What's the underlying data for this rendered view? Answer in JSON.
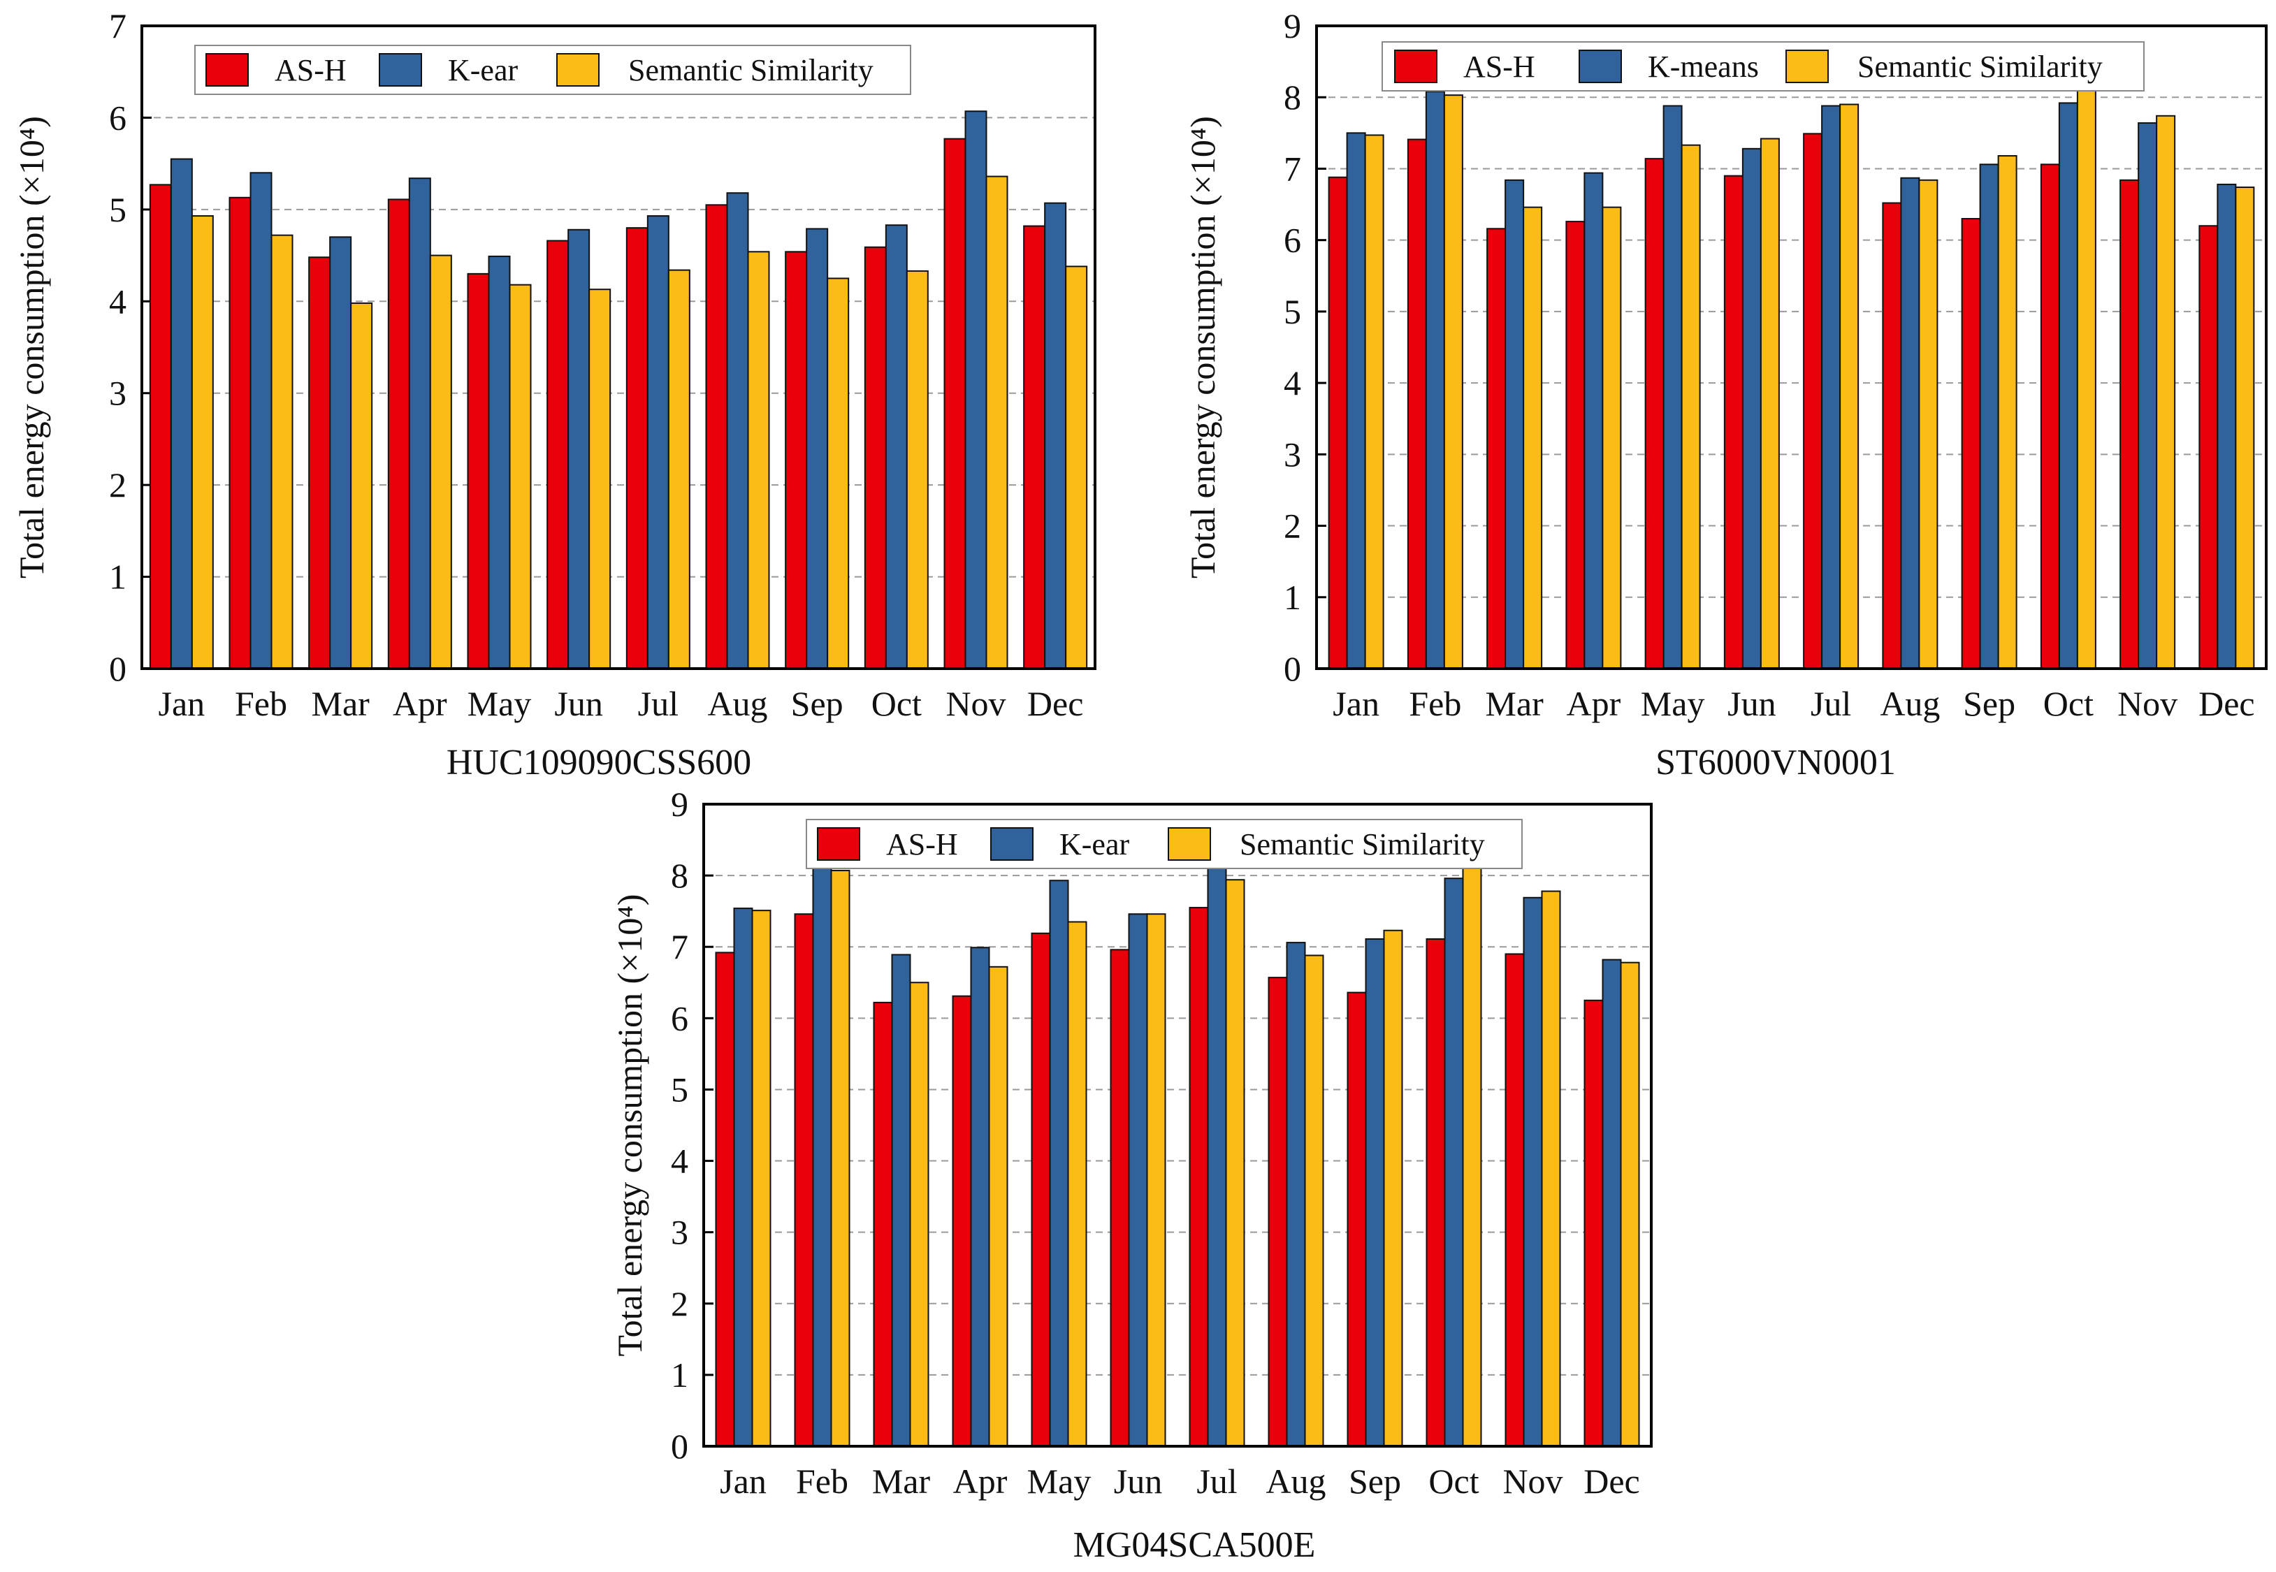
{
  "colors": {
    "as_h": "#e8000b",
    "k_series": "#30629b",
    "semantic": "#fbbc16",
    "grid": "#9a9a9a",
    "axis": "#000000"
  },
  "chart_data": [
    {
      "type": "bar",
      "caption": "HUC109090CSS600",
      "ylabel": "Total energy consumption (×10⁴)",
      "ylim": [
        0,
        7
      ],
      "yticks": [
        "0",
        "1",
        "2",
        "3",
        "4",
        "5",
        "6",
        "7"
      ],
      "categories": [
        "Jan",
        "Feb",
        "Mar",
        "Apr",
        "May",
        "Jun",
        "Jul",
        "Aug",
        "Sep",
        "Oct",
        "Nov",
        "Dec"
      ],
      "grid": "dashed-horizontal",
      "legend_position": "top-center",
      "series": [
        {
          "name": "AS-H",
          "values": [
            5.27,
            5.13,
            4.48,
            5.11,
            4.3,
            4.66,
            4.8,
            5.05,
            4.54,
            4.59,
            5.77,
            4.82
          ]
        },
        {
          "name": "K-ear",
          "values": [
            5.55,
            5.4,
            4.7,
            5.34,
            4.49,
            4.78,
            4.93,
            5.18,
            4.79,
            4.83,
            6.07,
            5.07
          ]
        },
        {
          "name": "Semantic Similarity",
          "values": [
            4.93,
            4.72,
            3.98,
            4.5,
            4.18,
            4.13,
            4.34,
            4.54,
            4.25,
            4.33,
            5.36,
            4.38
          ]
        }
      ]
    },
    {
      "type": "bar",
      "caption": "ST6000VN0001",
      "ylabel": "Total energy consumption (×10⁴)",
      "ylim": [
        0,
        9
      ],
      "yticks": [
        "0",
        "1",
        "2",
        "3",
        "4",
        "5",
        "6",
        "7",
        "8",
        "9"
      ],
      "categories": [
        "Jan",
        "Feb",
        "Mar",
        "Apr",
        "May",
        "Jun",
        "Jul",
        "Aug",
        "Sep",
        "Oct",
        "Nov",
        "Dec"
      ],
      "grid": "dashed-horizontal",
      "legend_position": "top-center",
      "series": [
        {
          "name": "AS-H",
          "values": [
            6.88,
            7.41,
            6.16,
            6.26,
            7.14,
            6.9,
            7.49,
            6.52,
            6.3,
            7.06,
            6.84,
            6.2
          ]
        },
        {
          "name": "K-means",
          "values": [
            7.5,
            8.08,
            6.84,
            6.94,
            7.88,
            7.28,
            7.88,
            6.87,
            7.06,
            7.92,
            7.64,
            6.78
          ]
        },
        {
          "name": "Semantic Similarity",
          "values": [
            7.47,
            8.03,
            6.46,
            6.46,
            7.33,
            7.42,
            7.9,
            6.84,
            7.18,
            8.12,
            7.74,
            6.74
          ]
        }
      ]
    },
    {
      "type": "bar",
      "caption": "MG04SCA500E",
      "ylabel": "Total energy consumption (×10⁴)",
      "ylim": [
        0,
        9
      ],
      "yticks": [
        "0",
        "1",
        "2",
        "3",
        "4",
        "5",
        "6",
        "7",
        "8",
        "9"
      ],
      "categories": [
        "Jan",
        "Feb",
        "Mar",
        "Apr",
        "May",
        "Jun",
        "Jul",
        "Aug",
        "Sep",
        "Oct",
        "Nov",
        "Dec"
      ],
      "grid": "dashed-horizontal",
      "legend_position": "top-center",
      "series": [
        {
          "name": "AS-H",
          "values": [
            6.92,
            7.46,
            6.22,
            6.31,
            7.19,
            6.96,
            7.55,
            6.57,
            6.36,
            7.11,
            6.9,
            6.25
          ]
        },
        {
          "name": "K-ear",
          "values": [
            7.54,
            8.13,
            6.89,
            6.99,
            7.93,
            7.46,
            8.11,
            7.06,
            7.11,
            7.96,
            7.69,
            6.82
          ]
        },
        {
          "name": "Semantic Similarity",
          "values": [
            7.51,
            8.07,
            6.5,
            6.72,
            7.35,
            7.46,
            7.94,
            6.88,
            7.23,
            8.17,
            7.78,
            6.78
          ]
        }
      ]
    }
  ]
}
